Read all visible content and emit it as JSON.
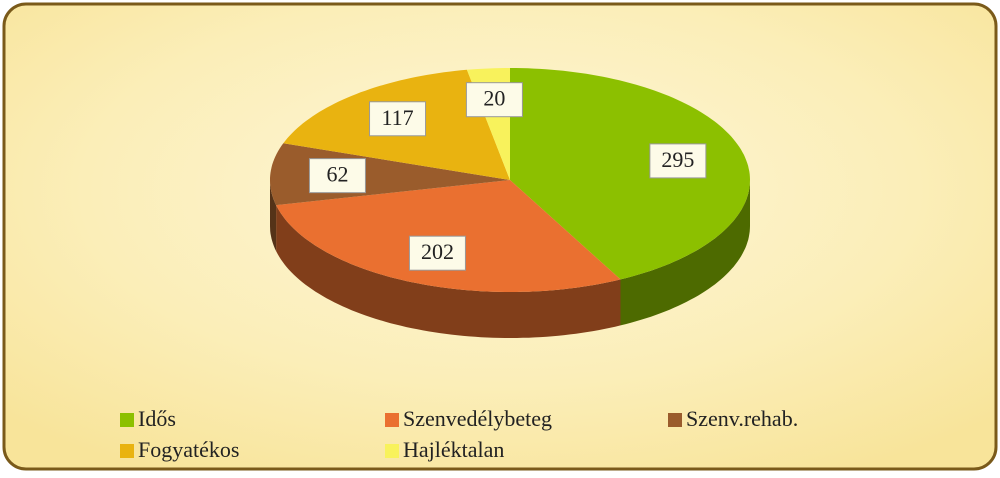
{
  "chart_data": {
    "type": "pie",
    "categories": [
      "Idős",
      "Szenvedélybeteg",
      "Szenv.rehab.",
      "Fogyatékos",
      "Hajléktalan"
    ],
    "values": [
      295,
      202,
      62,
      117,
      20
    ],
    "colors": [
      "#8cc000",
      "#ea7030",
      "#9a5c2c",
      "#e9b310",
      "#f8f25c"
    ],
    "legend": "bottom"
  }
}
